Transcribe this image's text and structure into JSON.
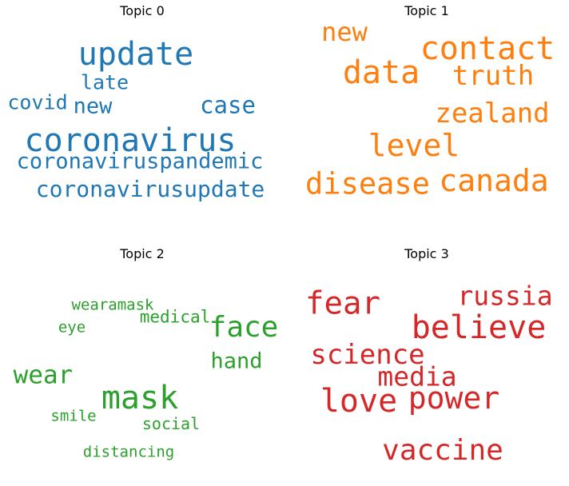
{
  "topics": [
    {
      "title": "Topic 0",
      "color": "#1f77b4",
      "words": [
        {
          "text": "update",
          "weight": 1.0
        },
        {
          "text": "coronavirus",
          "weight": 0.98
        },
        {
          "text": "coronavirusupdate",
          "weight": 0.72
        },
        {
          "text": "coronaviruspandemic",
          "weight": 0.68
        },
        {
          "text": "case",
          "weight": 0.7
        },
        {
          "text": "new",
          "weight": 0.62
        },
        {
          "text": "late",
          "weight": 0.6
        },
        {
          "text": "covid",
          "weight": 0.58
        }
      ]
    },
    {
      "title": "Topic 1",
      "color": "#ff7f0e",
      "words": [
        {
          "text": "contact",
          "weight": 1.0
        },
        {
          "text": "data",
          "weight": 0.98
        },
        {
          "text": "canada",
          "weight": 0.96
        },
        {
          "text": "level",
          "weight": 0.92
        },
        {
          "text": "disease",
          "weight": 0.9
        },
        {
          "text": "truth",
          "weight": 0.82
        },
        {
          "text": "zealand",
          "weight": 0.8
        },
        {
          "text": "new",
          "weight": 0.78
        }
      ]
    },
    {
      "title": "Topic 2",
      "color": "#2ca02c",
      "words": [
        {
          "text": "mask",
          "weight": 1.0
        },
        {
          "text": "face",
          "weight": 0.9
        },
        {
          "text": "wear",
          "weight": 0.78
        },
        {
          "text": "hand",
          "weight": 0.68
        },
        {
          "text": "medical",
          "weight": 0.52
        },
        {
          "text": "social",
          "weight": 0.48
        },
        {
          "text": "wearamask",
          "weight": 0.46
        },
        {
          "text": "distancing",
          "weight": 0.46
        },
        {
          "text": "smile",
          "weight": 0.44
        },
        {
          "text": "eye",
          "weight": 0.42
        }
      ]
    },
    {
      "title": "Topic 3",
      "color": "#d62728",
      "words": [
        {
          "text": "believe",
          "weight": 1.0
        },
        {
          "text": "love",
          "weight": 0.98
        },
        {
          "text": "fear",
          "weight": 0.96
        },
        {
          "text": "power",
          "weight": 0.94
        },
        {
          "text": "vaccine",
          "weight": 0.88
        },
        {
          "text": "science",
          "weight": 0.82
        },
        {
          "text": "media",
          "weight": 0.8
        },
        {
          "text": "russia",
          "weight": 0.78
        }
      ]
    }
  ]
}
